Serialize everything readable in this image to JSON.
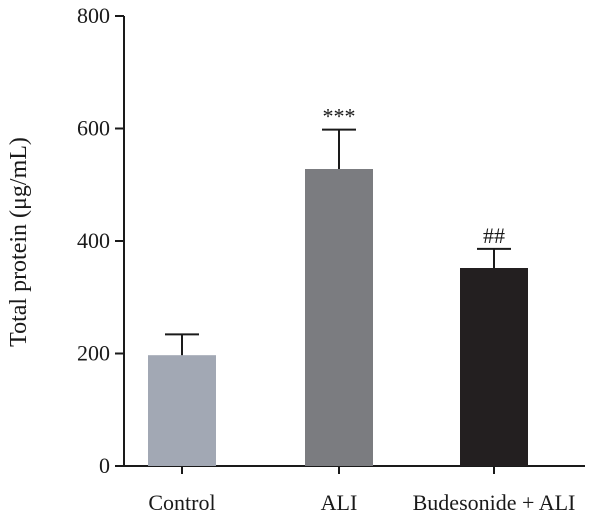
{
  "chart_data": {
    "type": "bar",
    "categories": [
      "Control",
      "ALI",
      "Budesonide + ALI"
    ],
    "values": [
      197,
      528,
      352
    ],
    "errors": [
      37,
      70,
      34
    ],
    "significance": [
      "",
      "***",
      "##"
    ],
    "bar_colors": [
      "#a2a8b4",
      "#7b7c80",
      "#231f20"
    ],
    "ylabel": "Total protein (μg/mL)",
    "ylim": [
      0,
      800
    ],
    "yticks": [
      0,
      200,
      400,
      600,
      800
    ],
    "grid": false,
    "legend": "none"
  }
}
